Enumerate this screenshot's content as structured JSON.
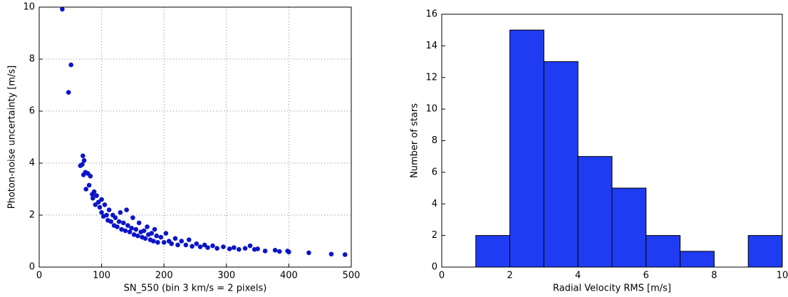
{
  "chart_data": [
    {
      "type": "scatter",
      "xlabel": "SN_550  (bin 3 km/s = 2 pixels)",
      "ylabel": "Photon-noise uncertainty [m/s]",
      "color": "#0a14c8",
      "grid": true,
      "xlim": [
        0,
        500
      ],
      "xticks": [
        0,
        100,
        200,
        300,
        400,
        500
      ],
      "ylim": [
        0,
        10
      ],
      "yticks": [
        0,
        2,
        4,
        6,
        8,
        10
      ],
      "x": [
        37,
        47,
        51,
        66,
        69,
        70,
        72,
        71,
        74,
        75,
        78,
        80,
        82,
        85,
        86,
        88,
        90,
        92,
        95,
        97,
        100,
        100,
        103,
        105,
        108,
        110,
        112,
        115,
        118,
        120,
        122,
        125,
        128,
        130,
        132,
        135,
        138,
        140,
        142,
        145,
        148,
        150,
        152,
        155,
        158,
        160,
        163,
        165,
        168,
        170,
        173,
        175,
        178,
        180,
        183,
        185,
        188,
        190,
        195,
        200,
        203,
        208,
        212,
        218,
        222,
        228,
        235,
        240,
        245,
        252,
        258,
        265,
        270,
        278,
        285,
        295,
        305,
        312,
        320,
        330,
        338,
        345,
        350,
        362,
        378,
        385,
        398,
        400,
        432,
        468,
        490
      ],
      "values": [
        9.92,
        6.72,
        7.78,
        3.9,
        3.95,
        4.28,
        4.1,
        3.55,
        3.65,
        3.0,
        3.6,
        3.15,
        3.5,
        2.8,
        2.65,
        2.9,
        2.4,
        2.75,
        2.5,
        2.3,
        2.6,
        2.1,
        1.95,
        2.4,
        2.0,
        1.8,
        2.2,
        1.75,
        2.0,
        1.6,
        1.9,
        1.55,
        1.75,
        2.1,
        1.45,
        1.7,
        1.4,
        2.2,
        1.6,
        1.35,
        1.5,
        1.9,
        1.25,
        1.45,
        1.2,
        1.7,
        1.35,
        1.15,
        1.4,
        1.1,
        1.55,
        1.25,
        1.05,
        1.3,
        1.0,
        1.45,
        1.2,
        0.95,
        1.15,
        0.95,
        1.3,
        1.0,
        0.9,
        1.1,
        0.85,
        1.0,
        0.85,
        1.05,
        0.8,
        0.9,
        0.78,
        0.85,
        0.75,
        0.82,
        0.72,
        0.78,
        0.7,
        0.75,
        0.68,
        0.72,
        0.82,
        0.68,
        0.7,
        0.62,
        0.65,
        0.6,
        0.62,
        0.58,
        0.55,
        0.5,
        0.48
      ]
    },
    {
      "type": "histogram",
      "xlabel": "Radial Velocity RMS [m/s]",
      "ylabel": "Number of stars",
      "color": "#1f3cf2",
      "grid": false,
      "bins": [
        0,
        1,
        2,
        3,
        4,
        5,
        6,
        7,
        8,
        9,
        10
      ],
      "values": [
        0,
        2,
        15,
        13,
        7,
        5,
        2,
        1,
        0,
        2
      ],
      "xlim": [
        0,
        10
      ],
      "xticks": [
        0,
        2,
        4,
        6,
        8,
        10
      ],
      "ylim": [
        0,
        16
      ],
      "yticks": [
        0,
        2,
        4,
        6,
        8,
        10,
        12,
        14,
        16
      ]
    }
  ]
}
